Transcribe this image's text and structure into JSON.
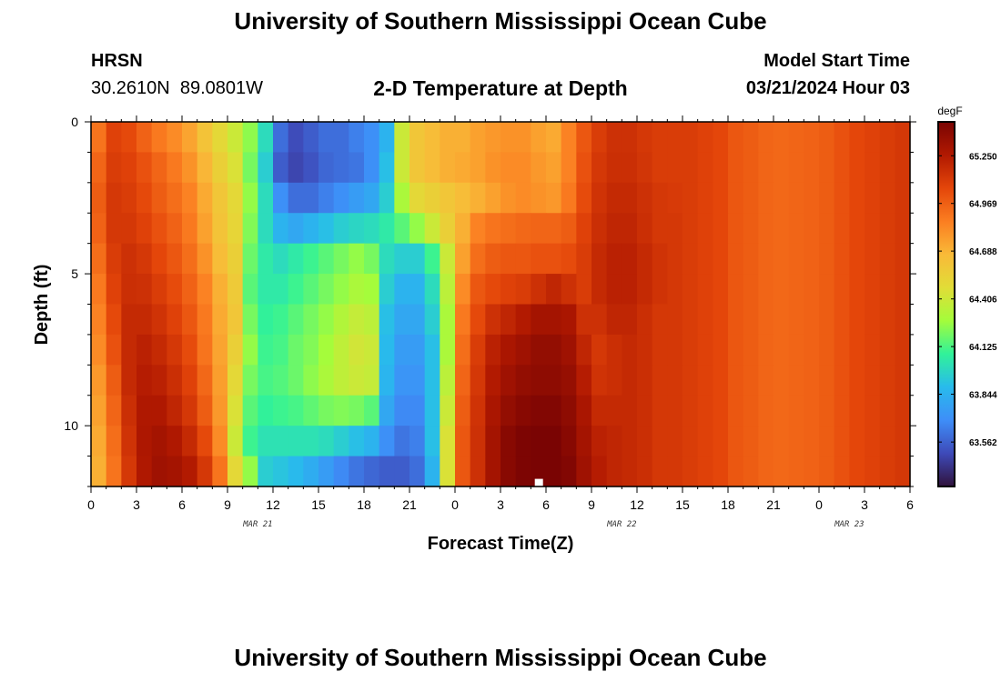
{
  "header": {
    "title": "University of Southern Mississippi Ocean Cube",
    "station": "HRSN",
    "coordinates": "30.2610N  89.0801W",
    "subtitle": "2-D Temperature at Depth",
    "model_start_label": "Model Start Time",
    "model_start_value": "03/21/2024 Hour 03"
  },
  "footer": {
    "title": "University of Southern Mississippi Ocean Cube"
  },
  "colors": {
    "background": "#ffffff",
    "axis": "#000000",
    "colormap": [
      "#30123b",
      "#3e4ab9",
      "#3e8ef8",
      "#28bbec",
      "#31f299",
      "#a4fc3b",
      "#e1dd37",
      "#f9ba38",
      "#fb7e21",
      "#e4460a",
      "#b11901",
      "#7a0403"
    ]
  },
  "chart_data": {
    "type": "heatmap",
    "title": "2-D Temperature at Depth",
    "xlabel": "Forecast Time(Z)",
    "ylabel": "Depth (ft)",
    "x_range_hours": [
      0,
      54
    ],
    "y_range_ft": [
      0,
      12
    ],
    "x_tick_labels": [
      "0",
      "3",
      "6",
      "9",
      "12",
      "15",
      "18",
      "21",
      "0",
      "3",
      "6",
      "9",
      "12",
      "15",
      "18",
      "21",
      "0",
      "3",
      "6"
    ],
    "y_ticks": [
      0,
      5,
      10
    ],
    "y_tick_labels": [
      "0",
      "5",
      "10"
    ],
    "date_labels": [
      {
        "hour": 11,
        "text": "MAR 21"
      },
      {
        "hour": 35,
        "text": "MAR 22"
      },
      {
        "hour": 50,
        "text": "MAR 23"
      }
    ],
    "colorbar": {
      "unit": "degF",
      "min": 63.3,
      "max": 65.45,
      "tick_values": [
        65.25,
        64.969,
        64.688,
        64.406,
        64.125,
        63.844,
        63.562
      ],
      "tick_labels": [
        "65.250",
        "64.969",
        "64.688",
        "64.406",
        "64.125",
        "63.844",
        "63.562"
      ]
    },
    "time_step_hours": 1,
    "depth_step_ft": 1,
    "missing_cell": {
      "hour": 29.5,
      "depth": 11.75
    },
    "temperature_degF": [
      [
        64.9,
        65.08,
        65.05,
        64.96,
        64.88,
        64.82,
        64.74,
        64.62,
        64.5,
        64.4,
        64.24,
        64.0,
        63.6,
        63.5,
        63.55,
        63.6,
        63.6,
        63.65,
        63.7,
        63.85,
        64.4,
        64.6,
        64.65,
        64.7,
        64.7,
        64.75,
        64.78,
        64.8,
        64.8,
        64.75,
        64.72,
        64.85,
        65.0,
        65.1,
        65.15,
        65.15,
        65.12,
        65.1,
        65.1,
        65.1,
        65.08,
        65.06,
        65.0,
        64.98,
        64.95,
        64.94,
        64.95,
        64.96,
        64.98,
        65.02,
        65.06,
        65.08,
        65.1,
        65.12
      ],
      [
        64.95,
        65.1,
        65.08,
        65.02,
        64.95,
        64.88,
        64.8,
        64.68,
        64.55,
        64.45,
        64.2,
        63.95,
        63.55,
        63.48,
        63.52,
        63.58,
        63.6,
        63.62,
        63.7,
        63.9,
        64.4,
        64.6,
        64.65,
        64.7,
        64.72,
        64.75,
        64.8,
        64.82,
        64.82,
        64.78,
        64.75,
        64.85,
        65.02,
        65.12,
        65.16,
        65.16,
        65.13,
        65.1,
        65.1,
        65.1,
        65.08,
        65.06,
        65.0,
        64.98,
        64.95,
        64.94,
        64.95,
        64.96,
        64.98,
        65.02,
        65.06,
        65.08,
        65.1,
        65.12
      ],
      [
        64.98,
        65.12,
        65.1,
        65.05,
        64.98,
        64.92,
        64.85,
        64.72,
        64.6,
        64.5,
        64.25,
        64.0,
        63.7,
        63.6,
        63.6,
        63.65,
        63.7,
        63.75,
        63.8,
        63.95,
        64.3,
        64.5,
        64.55,
        64.6,
        64.65,
        64.7,
        64.75,
        64.8,
        64.82,
        64.8,
        64.78,
        64.88,
        65.04,
        65.14,
        65.18,
        65.18,
        65.15,
        65.12,
        65.11,
        65.1,
        65.08,
        65.06,
        65.0,
        64.98,
        64.95,
        64.94,
        64.95,
        64.96,
        64.98,
        65.02,
        65.06,
        65.08,
        65.1,
        65.12
      ],
      [
        64.96,
        65.12,
        65.12,
        65.08,
        65.02,
        64.96,
        64.88,
        64.75,
        64.62,
        64.52,
        64.22,
        64.0,
        63.85,
        63.8,
        63.85,
        63.9,
        63.95,
        63.98,
        64.0,
        64.05,
        64.15,
        64.25,
        64.4,
        64.55,
        64.7,
        64.85,
        64.9,
        64.92,
        64.94,
        64.95,
        64.95,
        64.98,
        65.08,
        65.16,
        65.2,
        65.2,
        65.16,
        65.12,
        65.12,
        65.1,
        65.08,
        65.06,
        65.0,
        64.98,
        64.95,
        64.94,
        64.95,
        64.96,
        64.98,
        65.02,
        65.06,
        65.08,
        65.1,
        65.12
      ],
      [
        64.92,
        65.1,
        65.15,
        65.12,
        65.06,
        65.0,
        64.92,
        64.8,
        64.65,
        64.55,
        64.18,
        64.05,
        64.0,
        64.05,
        64.1,
        64.15,
        64.2,
        64.25,
        64.2,
        64.0,
        63.95,
        63.95,
        64.1,
        64.4,
        64.75,
        64.92,
        64.98,
        65.0,
        65.0,
        65.02,
        65.02,
        65.04,
        65.1,
        65.18,
        65.22,
        65.22,
        65.18,
        65.14,
        65.12,
        65.1,
        65.08,
        65.06,
        65.0,
        64.98,
        64.95,
        64.94,
        64.95,
        64.96,
        64.98,
        65.02,
        65.06,
        65.08,
        65.1,
        65.12
      ],
      [
        64.88,
        65.08,
        65.16,
        65.15,
        65.1,
        65.04,
        64.96,
        64.85,
        64.7,
        64.58,
        64.15,
        64.05,
        64.05,
        64.1,
        64.15,
        64.2,
        64.25,
        64.3,
        64.28,
        63.95,
        63.85,
        63.85,
        64.0,
        64.35,
        64.82,
        65.0,
        65.05,
        65.08,
        65.1,
        65.15,
        65.2,
        65.15,
        65.1,
        65.18,
        65.22,
        65.22,
        65.18,
        65.14,
        65.12,
        65.1,
        65.08,
        65.06,
        65.0,
        64.98,
        64.95,
        64.94,
        64.95,
        64.96,
        64.98,
        65.02,
        65.06,
        65.08,
        65.1,
        65.12
      ],
      [
        64.85,
        65.05,
        65.18,
        65.18,
        65.14,
        65.08,
        65.0,
        64.88,
        64.72,
        64.6,
        64.2,
        64.08,
        64.1,
        64.15,
        64.2,
        64.25,
        64.32,
        64.38,
        64.35,
        63.9,
        63.8,
        63.8,
        63.95,
        64.3,
        64.88,
        65.05,
        65.15,
        65.2,
        65.25,
        65.3,
        65.3,
        65.28,
        65.15,
        65.15,
        65.2,
        65.2,
        65.16,
        65.12,
        65.12,
        65.1,
        65.08,
        65.06,
        65.0,
        64.98,
        64.95,
        64.94,
        64.95,
        64.96,
        64.98,
        65.02,
        65.06,
        65.08,
        65.1,
        65.12
      ],
      [
        64.82,
        65.02,
        65.18,
        65.22,
        65.18,
        65.12,
        65.04,
        64.9,
        64.74,
        64.55,
        64.25,
        64.1,
        64.12,
        64.18,
        64.22,
        64.28,
        64.36,
        64.42,
        64.4,
        63.88,
        63.75,
        63.75,
        63.9,
        64.3,
        64.92,
        65.1,
        65.22,
        65.28,
        65.32,
        65.36,
        65.36,
        65.32,
        65.2,
        65.12,
        65.16,
        65.18,
        65.16,
        65.12,
        65.12,
        65.1,
        65.08,
        65.06,
        65.0,
        64.98,
        64.95,
        64.94,
        64.95,
        64.96,
        64.98,
        65.02,
        65.06,
        65.08,
        65.1,
        65.12
      ],
      [
        64.78,
        64.98,
        65.18,
        65.24,
        65.22,
        65.16,
        65.08,
        64.94,
        64.76,
        64.5,
        64.2,
        64.12,
        64.14,
        64.18,
        64.24,
        64.3,
        64.36,
        64.4,
        64.38,
        63.86,
        63.72,
        63.72,
        63.9,
        64.35,
        64.95,
        65.12,
        65.25,
        65.32,
        65.36,
        65.38,
        65.38,
        65.35,
        65.24,
        65.14,
        65.16,
        65.18,
        65.16,
        65.12,
        65.12,
        65.1,
        65.08,
        65.06,
        65.0,
        64.98,
        64.95,
        64.94,
        64.95,
        64.96,
        64.98,
        65.02,
        65.06,
        65.08,
        65.1,
        65.12
      ],
      [
        64.75,
        64.95,
        65.16,
        65.26,
        65.26,
        65.2,
        65.12,
        64.98,
        64.78,
        64.45,
        64.15,
        64.08,
        64.1,
        64.12,
        64.16,
        64.2,
        64.22,
        64.2,
        64.15,
        63.8,
        63.68,
        63.68,
        63.9,
        64.4,
        64.98,
        65.14,
        65.28,
        65.36,
        65.4,
        65.42,
        65.42,
        65.38,
        65.28,
        65.18,
        65.18,
        65.18,
        65.16,
        65.12,
        65.12,
        65.1,
        65.08,
        65.06,
        65.0,
        64.98,
        64.95,
        64.94,
        64.95,
        64.96,
        64.98,
        65.02,
        65.06,
        65.08,
        65.1,
        65.12
      ],
      [
        64.72,
        64.92,
        65.14,
        65.27,
        65.3,
        65.26,
        65.18,
        65.05,
        64.82,
        64.4,
        64.1,
        64.02,
        64.02,
        64.02,
        64.02,
        64.0,
        63.95,
        63.9,
        63.85,
        63.7,
        63.62,
        63.65,
        63.9,
        64.45,
        65.0,
        65.15,
        65.3,
        65.4,
        65.44,
        65.45,
        65.45,
        65.4,
        65.3,
        65.22,
        65.2,
        65.18,
        65.16,
        65.12,
        65.12,
        65.1,
        65.08,
        65.06,
        65.0,
        64.98,
        64.95,
        64.94,
        64.95,
        64.96,
        64.98,
        65.02,
        65.06,
        65.08,
        65.1,
        65.12
      ],
      [
        64.7,
        64.9,
        65.12,
        65.26,
        65.32,
        65.3,
        65.25,
        65.12,
        64.9,
        64.5,
        64.25,
        63.95,
        63.92,
        63.88,
        63.82,
        63.75,
        63.68,
        63.62,
        63.58,
        63.55,
        63.55,
        63.6,
        63.85,
        64.45,
        65.0,
        65.15,
        65.3,
        65.4,
        65.44,
        65.46,
        65.46,
        65.42,
        65.32,
        65.24,
        65.2,
        65.18,
        65.16,
        65.12,
        65.12,
        65.1,
        65.08,
        65.06,
        65.0,
        64.98,
        64.95,
        64.94,
        64.95,
        64.96,
        64.98,
        65.02,
        65.06,
        65.08,
        65.1,
        65.12
      ]
    ]
  }
}
